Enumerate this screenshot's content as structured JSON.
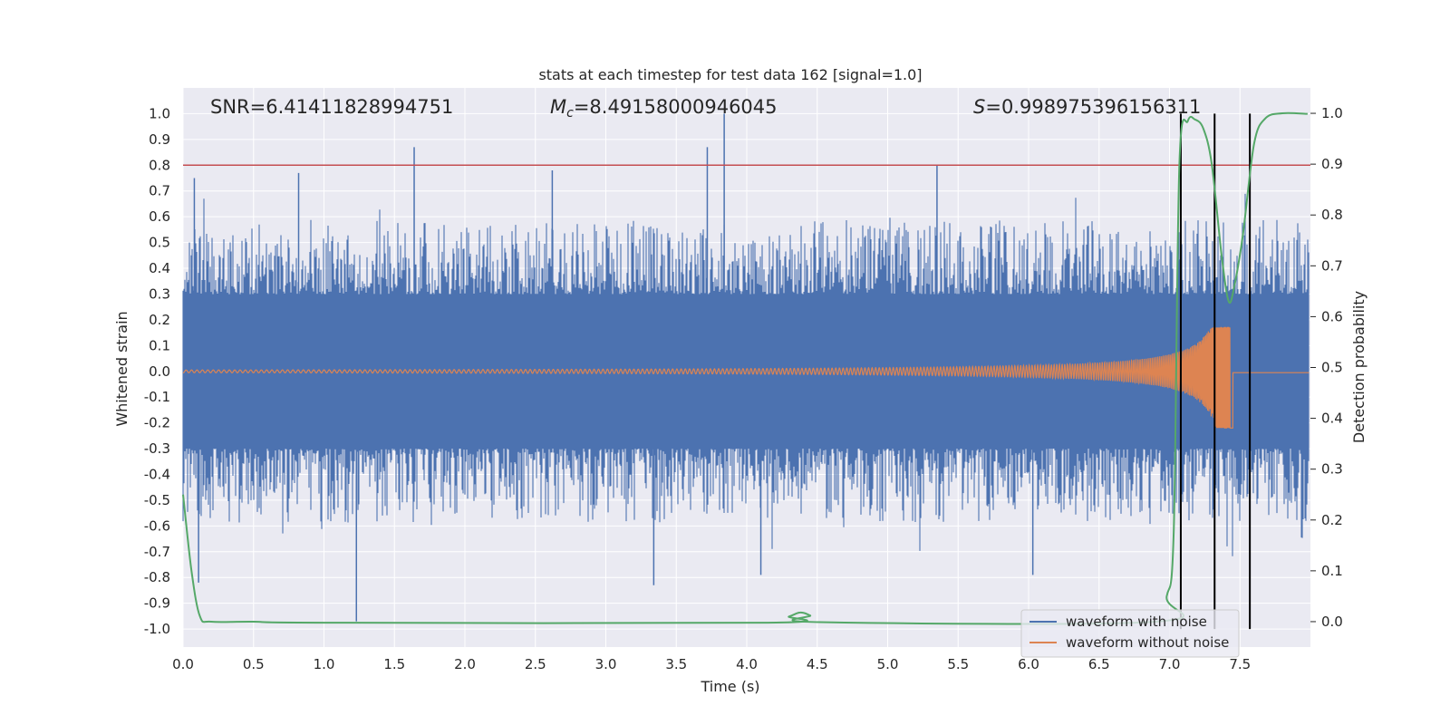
{
  "chart_data": {
    "type": "line",
    "title": "stats at each timestep for test data 162 [signal=1.0]",
    "xlabel": "Time (s)",
    "ylabel_left": "Whitened strain",
    "ylabel_right": "Detection probability",
    "xlim": [
      0.0,
      8.0
    ],
    "ylim_left": [
      -1.07,
      1.1
    ],
    "ylim_right": [
      -0.05,
      1.05
    ],
    "x_ticks": [
      "0.0",
      "0.5",
      "1.0",
      "1.5",
      "2.0",
      "2.5",
      "3.0",
      "3.5",
      "4.0",
      "4.5",
      "5.0",
      "5.5",
      "6.0",
      "6.5",
      "7.0",
      "7.5"
    ],
    "y_ticks_left": [
      "1.0",
      "0.9",
      "0.8",
      "0.7",
      "0.6",
      "0.5",
      "0.4",
      "0.3",
      "0.2",
      "0.1",
      "0.0",
      "-0.1",
      "-0.2",
      "-0.3",
      "-0.4",
      "-0.5",
      "-0.6",
      "-0.7",
      "-0.8",
      "-0.9",
      "-1.0"
    ],
    "y_ticks_right": [
      "1.0",
      "0.9",
      "0.8",
      "0.7",
      "0.6",
      "0.5",
      "0.4",
      "0.3",
      "0.2",
      "0.1",
      "0.0"
    ],
    "annotations": {
      "snr": "SNR=6.41411828994751",
      "mc_symbol": "M",
      "mc_sub": "c",
      "mc_value": "=8.49158000946045",
      "s_symbol": "S",
      "s_value": "=0.998975396156311"
    },
    "threshold_left": 0.8,
    "vertical_lines_x": [
      7.08,
      7.32,
      7.57
    ],
    "noise_envelope": {
      "core_abs": 0.3,
      "typical_peak": 0.55,
      "max_peak": 1.0,
      "min_trough": -0.97
    },
    "noise_spikes": [
      {
        "x": 0.08,
        "y": 0.75
      },
      {
        "x": 0.82,
        "y": 0.77
      },
      {
        "x": 1.64,
        "y": 0.87
      },
      {
        "x": 2.62,
        "y": 0.78
      },
      {
        "x": 3.72,
        "y": 0.87
      },
      {
        "x": 3.84,
        "y": 1.0
      },
      {
        "x": 5.35,
        "y": 0.8
      },
      {
        "x": 0.11,
        "y": -0.82
      },
      {
        "x": 1.23,
        "y": -0.97
      },
      {
        "x": 3.34,
        "y": -0.83
      },
      {
        "x": 4.1,
        "y": -0.79
      },
      {
        "x": 6.03,
        "y": -0.79
      }
    ],
    "clean_waveform": {
      "start_amp": 0.005,
      "peak_x": 7.43,
      "peak_pos": 0.17,
      "peak_neg": -0.22,
      "end_x": 7.45,
      "end_value": -0.005
    },
    "detection_probability": [
      {
        "x": 0.0,
        "y": 0.25
      },
      {
        "x": 0.06,
        "y": 0.1
      },
      {
        "x": 0.12,
        "y": 0.01
      },
      {
        "x": 0.2,
        "y": 0.0
      },
      {
        "x": 0.5,
        "y": 0.0
      },
      {
        "x": 1.0,
        "y": -0.002
      },
      {
        "x": 4.15,
        "y": -0.002
      },
      {
        "x": 4.3,
        "y": 0.01
      },
      {
        "x": 4.38,
        "y": 0.018
      },
      {
        "x": 4.45,
        "y": 0.012
      },
      {
        "x": 4.52,
        "y": -0.001
      },
      {
        "x": 6.9,
        "y": 0.0
      },
      {
        "x": 6.98,
        "y": 0.05
      },
      {
        "x": 7.03,
        "y": 0.18
      },
      {
        "x": 7.07,
        "y": 0.9
      },
      {
        "x": 7.13,
        "y": 0.985
      },
      {
        "x": 7.18,
        "y": 0.988
      },
      {
        "x": 7.24,
        "y": 0.97
      },
      {
        "x": 7.3,
        "y": 0.9
      },
      {
        "x": 7.37,
        "y": 0.72
      },
      {
        "x": 7.42,
        "y": 0.63
      },
      {
        "x": 7.46,
        "y": 0.66
      },
      {
        "x": 7.52,
        "y": 0.76
      },
      {
        "x": 7.6,
        "y": 0.94
      },
      {
        "x": 7.68,
        "y": 0.99
      },
      {
        "x": 7.8,
        "y": 1.0
      },
      {
        "x": 7.98,
        "y": 0.999
      }
    ],
    "series": [
      {
        "name": "waveform with noise",
        "color": "#4c72b0"
      },
      {
        "name": "waveform without noise",
        "color": "#dd8452"
      },
      {
        "name": "detection probability",
        "color": "#55a868"
      }
    ],
    "threshold_color": "#c44e52",
    "legend": [
      "waveform with noise",
      "waveform without noise"
    ],
    "legend_position": "lower-right",
    "grid": true
  }
}
